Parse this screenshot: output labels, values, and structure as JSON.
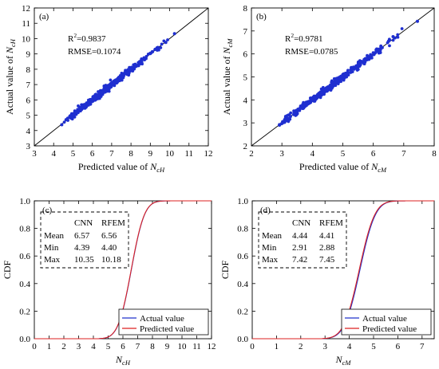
{
  "chart_data": [
    {
      "type": "scatter",
      "panel_label": "(a)",
      "xlabel_prefix": "Predicted value of ",
      "ylabel_prefix": "Actual value of ",
      "var_main": "N",
      "var_sub": "cH",
      "xlim": [
        3,
        12
      ],
      "ylim": [
        3,
        12
      ],
      "xticks": [
        3,
        4,
        5,
        6,
        7,
        8,
        9,
        10,
        11,
        12
      ],
      "yticks": [
        3,
        4,
        5,
        6,
        7,
        8,
        9,
        10,
        11,
        12
      ],
      "r2_prefix": "R",
      "r2_sup": "2",
      "r2_value": "=0.9837",
      "rmse_text": "RMSE=0.1074",
      "reference_line": [
        [
          3,
          3
        ],
        [
          12,
          12
        ]
      ],
      "points_range": [
        4.4,
        10.3
      ],
      "spread": 0.11,
      "marker_color": "#1f2fd0",
      "points": [
        [
          4.42,
          4.38
        ],
        [
          4.7,
          4.75
        ],
        [
          4.9,
          4.86
        ],
        [
          5.05,
          5.12
        ],
        [
          5.2,
          5.15
        ],
        [
          5.35,
          5.42
        ],
        [
          5.5,
          5.46
        ],
        [
          5.6,
          5.7
        ],
        [
          5.75,
          5.7
        ],
        [
          5.85,
          5.95
        ],
        [
          5.95,
          5.9
        ],
        [
          6.05,
          6.12
        ],
        [
          6.15,
          6.08
        ],
        [
          6.25,
          6.3
        ],
        [
          6.35,
          6.28
        ],
        [
          6.45,
          6.52
        ],
        [
          6.55,
          6.5
        ],
        [
          6.65,
          6.72
        ],
        [
          6.75,
          6.7
        ],
        [
          6.85,
          6.9
        ],
        [
          6.95,
          6.88
        ],
        [
          7.05,
          7.12
        ],
        [
          7.15,
          7.1
        ],
        [
          7.3,
          7.35
        ],
        [
          7.45,
          7.4
        ],
        [
          7.6,
          7.68
        ],
        [
          7.8,
          7.75
        ],
        [
          8.0,
          8.05
        ],
        [
          8.2,
          8.15
        ],
        [
          8.45,
          8.5
        ],
        [
          8.7,
          8.62
        ],
        [
          9.0,
          9.05
        ],
        [
          9.35,
          9.4
        ],
        [
          9.8,
          9.75
        ],
        [
          10.25,
          10.32
        ]
      ]
    },
    {
      "type": "scatter",
      "panel_label": "(b)",
      "xlabel_prefix": "Predicted value of ",
      "ylabel_prefix": "Actual value of ",
      "var_main": "N",
      "var_sub": "cM",
      "xlim": [
        2,
        8
      ],
      "ylim": [
        2,
        8
      ],
      "xticks": [
        2,
        3,
        4,
        5,
        6,
        7,
        8
      ],
      "yticks": [
        2,
        3,
        4,
        5,
        6,
        7,
        8
      ],
      "r2_prefix": "R",
      "r2_sup": "2",
      "r2_value": "=0.9781",
      "rmse_text": "RMSE=0.0785",
      "reference_line": [
        [
          2,
          2
        ],
        [
          8,
          8
        ]
      ],
      "points_range": [
        2.9,
        7.45
      ],
      "spread": 0.08,
      "marker_color": "#1f2fd0",
      "points": [
        [
          2.92,
          2.9
        ],
        [
          3.1,
          3.15
        ],
        [
          3.25,
          3.2
        ],
        [
          3.4,
          3.45
        ],
        [
          3.5,
          3.48
        ],
        [
          3.6,
          3.65
        ],
        [
          3.7,
          3.66
        ],
        [
          3.8,
          3.85
        ],
        [
          3.9,
          3.86
        ],
        [
          4.0,
          4.05
        ],
        [
          4.1,
          4.06
        ],
        [
          4.2,
          4.25
        ],
        [
          4.3,
          4.26
        ],
        [
          4.4,
          4.45
        ],
        [
          4.5,
          4.46
        ],
        [
          4.6,
          4.65
        ],
        [
          4.7,
          4.66
        ],
        [
          4.8,
          4.85
        ],
        [
          4.9,
          4.86
        ],
        [
          5.0,
          5.05
        ],
        [
          5.15,
          5.1
        ],
        [
          5.3,
          5.35
        ],
        [
          5.45,
          5.4
        ],
        [
          5.6,
          5.65
        ],
        [
          5.8,
          5.75
        ],
        [
          6.0,
          6.05
        ],
        [
          6.25,
          6.3
        ],
        [
          6.5,
          6.55
        ],
        [
          6.65,
          6.75
        ],
        [
          7.45,
          7.42
        ]
      ]
    },
    {
      "type": "line",
      "panel_label": "(c)",
      "ylabel": "CDF",
      "var_main": "N",
      "var_sub": "cH",
      "xlim": [
        0,
        12
      ],
      "ylim": [
        0,
        1
      ],
      "xticks": [
        0,
        1,
        2,
        3,
        4,
        5,
        6,
        7,
        8,
        9,
        10,
        11,
        12
      ],
      "yticks": [
        "0.0",
        "0.2",
        "0.4",
        "0.6",
        "0.8",
        "1.0"
      ],
      "series": [
        {
          "name": "Actual value",
          "color": "#2233cc",
          "cdf": {
            "mean": 6.57,
            "sd": 0.7,
            "min": 4.39,
            "max": 10.35
          }
        },
        {
          "name": "Predicted value",
          "color": "#dd2222",
          "cdf": {
            "mean": 6.56,
            "sd": 0.7,
            "min": 4.4,
            "max": 10.18
          }
        }
      ],
      "stats_table": {
        "headers": [
          "",
          "CNN",
          "RFEM"
        ],
        "rows": [
          [
            "Mean",
            "6.57",
            "6.56"
          ],
          [
            "Min",
            "4.39",
            "4.40"
          ],
          [
            "Max",
            "10.35",
            "10.18"
          ]
        ]
      }
    },
    {
      "type": "line",
      "panel_label": "(d)",
      "ylabel": "CDF",
      "var_main": "N",
      "var_sub": "cM",
      "xlim": [
        0,
        7.5
      ],
      "ylim": [
        0,
        1
      ],
      "xticks": [
        0,
        1,
        2,
        3,
        4,
        5,
        6,
        7
      ],
      "yticks": [
        "0.0",
        "0.2",
        "0.4",
        "0.6",
        "0.8",
        "1.0"
      ],
      "series": [
        {
          "name": "Actual value",
          "color": "#2233cc",
          "cdf": {
            "mean": 4.44,
            "sd": 0.5,
            "min": 2.91,
            "max": 7.42
          }
        },
        {
          "name": "Predicted value",
          "color": "#dd2222",
          "cdf": {
            "mean": 4.41,
            "sd": 0.5,
            "min": 2.88,
            "max": 7.45
          }
        }
      ],
      "stats_table": {
        "headers": [
          "",
          "CNN",
          "RFEM"
        ],
        "rows": [
          [
            "Mean",
            "4.44",
            "4.41"
          ],
          [
            "Min",
            "2.91",
            "2.88"
          ],
          [
            "Max",
            "7.42",
            "7.45"
          ]
        ]
      }
    }
  ]
}
